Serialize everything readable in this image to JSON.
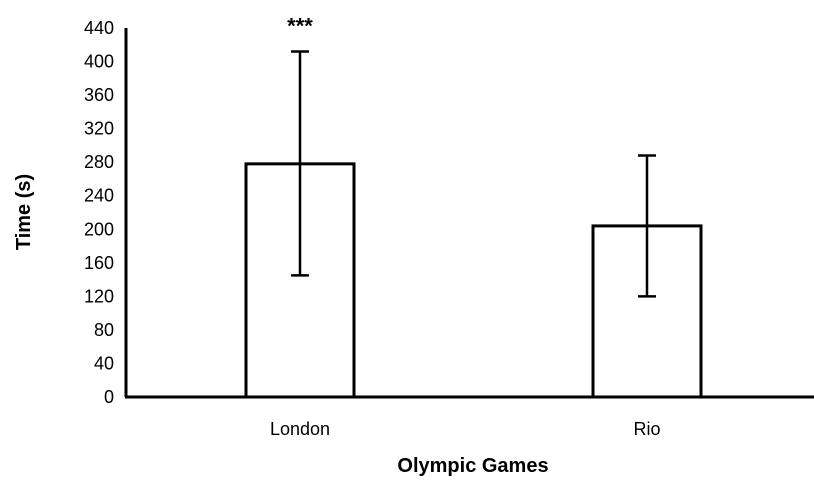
{
  "chart_data": {
    "type": "bar",
    "categories": [
      "London",
      "Rio"
    ],
    "values": [
      278,
      204
    ],
    "error_bars": [
      {
        "low": 145,
        "high": 412
      },
      {
        "low": 120,
        "high": 288
      }
    ],
    "annotations": [
      {
        "category": "London",
        "text": "***"
      }
    ],
    "xlabel": "Olympic Games",
    "ylabel": "Time (s)",
    "ylim": [
      0,
      440
    ],
    "yticks": [
      0,
      40,
      80,
      120,
      160,
      200,
      240,
      280,
      320,
      360,
      400,
      440
    ],
    "grid": false,
    "bar_fill": "#ffffff",
    "bar_stroke": "#000000"
  }
}
